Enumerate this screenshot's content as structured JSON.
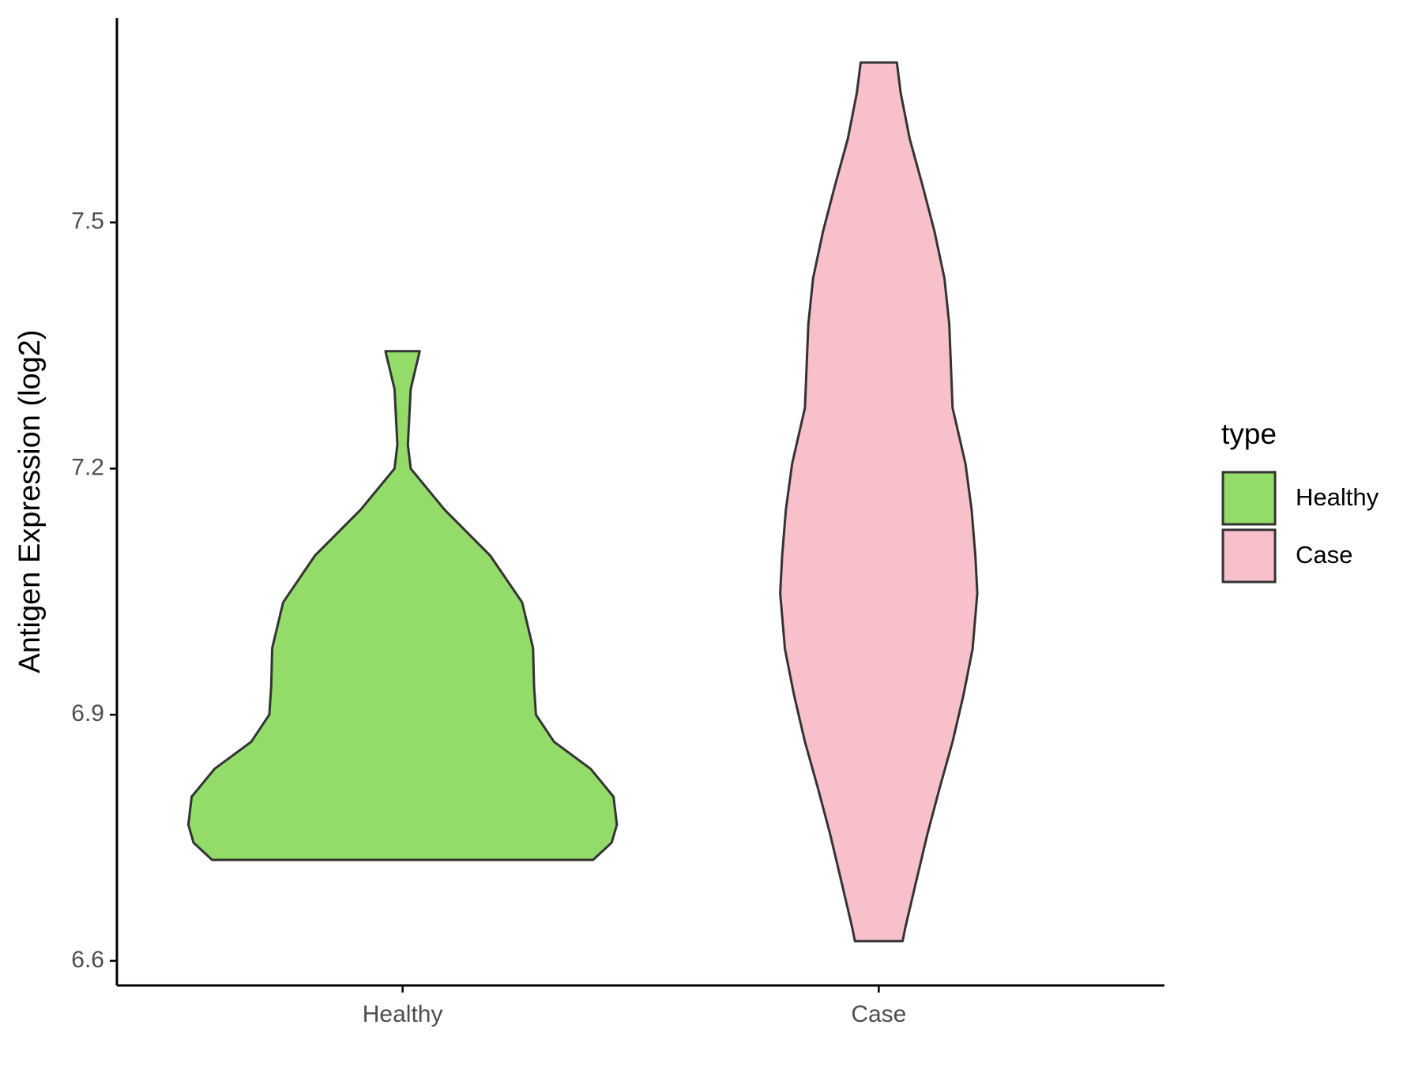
{
  "chart_data": {
    "type": "violin",
    "y_label": "Antigen Expression (log2)",
    "categories": [
      "Healthy",
      "Case"
    ],
    "legend_title": "type",
    "legend_position": "right",
    "ylim": [
      6.57,
      7.749
    ],
    "yticks": [
      6.6,
      6.9,
      7.2,
      7.5
    ],
    "series": [
      {
        "name": "Healthy",
        "color": "#93dc6a",
        "y": [
          7.343,
          7.297,
          7.229,
          7.2,
          7.15,
          7.094,
          7.037,
          6.981,
          6.935,
          6.9,
          6.867,
          6.834,
          6.8,
          6.766,
          6.744,
          6.723
        ],
        "half_width": [
          0.036,
          0.017,
          0.011,
          0.017,
          0.088,
          0.184,
          0.251,
          0.274,
          0.276,
          0.28,
          0.318,
          0.395,
          0.443,
          0.45,
          0.439,
          0.4
        ]
      },
      {
        "name": "Case",
        "color": "#f7c0cb",
        "y": [
          7.695,
          7.658,
          7.602,
          7.545,
          7.489,
          7.432,
          7.376,
          7.274,
          7.206,
          7.15,
          7.093,
          7.048,
          6.98,
          6.924,
          6.867,
          6.811,
          6.754,
          6.698,
          6.641,
          6.624
        ],
        "half_width": [
          0.038,
          0.046,
          0.065,
          0.092,
          0.117,
          0.138,
          0.148,
          0.155,
          0.182,
          0.195,
          0.203,
          0.207,
          0.197,
          0.178,
          0.155,
          0.128,
          0.102,
          0.079,
          0.056,
          0.05
        ]
      }
    ]
  }
}
